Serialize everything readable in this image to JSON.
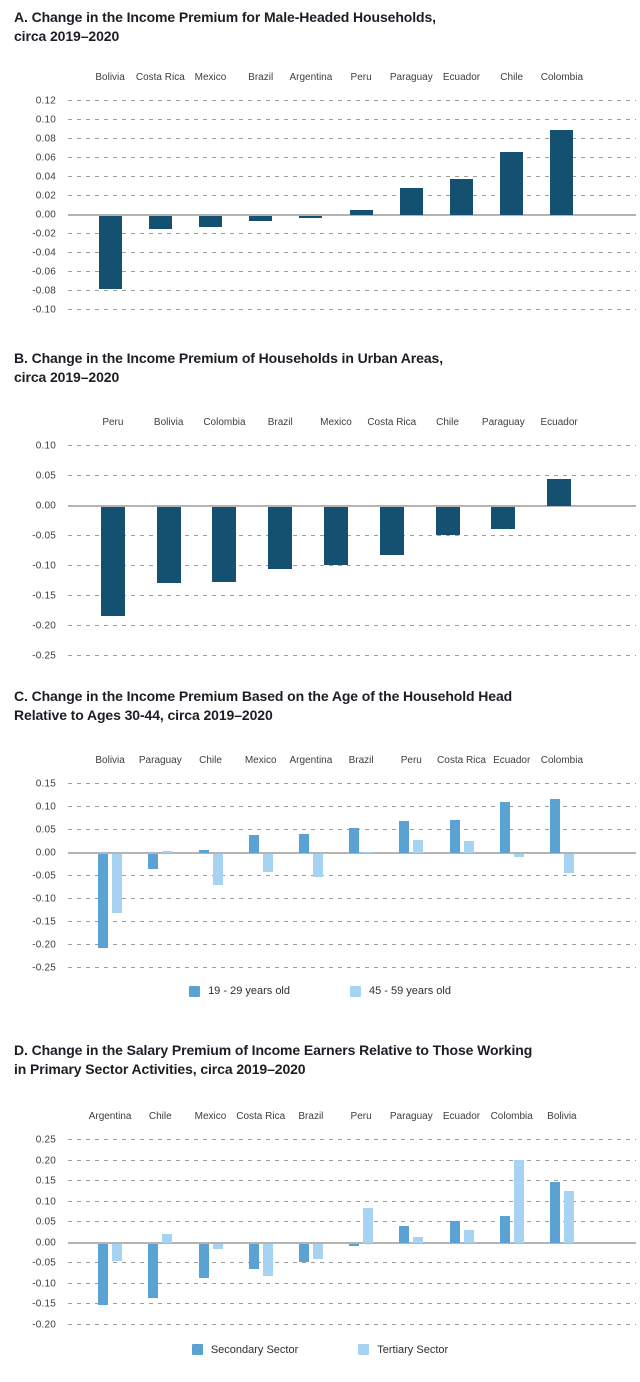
{
  "page": {
    "background": "#ffffff"
  },
  "colors": {
    "dark_teal": "#14506f",
    "medium_blue": "#5aa2d4",
    "light_blue": "#a7d3f2",
    "grid_gray": "#9d9d9d",
    "zero_line_gray": "#b4b4b4",
    "title_text": "#1d1d25",
    "axis_text": "#3e3e3e"
  },
  "chart_data": [
    {
      "panel": "A",
      "type": "bar",
      "title": "A. Change in the Income Premium for Male-Headed Households, circa 2019–2020",
      "title_lines": [
        "A. Change in the Income Premium for Male-Headed Households,",
        "circa 2019–2020"
      ],
      "categories": [
        "Bolivia",
        "Costa Rica",
        "Mexico",
        "Brazil",
        "Argentina",
        "Peru",
        "Paraguay",
        "Ecuador",
        "Chile",
        "Colombia"
      ],
      "series": [
        {
          "name": "",
          "color_key": "dark_teal",
          "values": [
            -0.077,
            -0.014,
            -0.011,
            -0.005,
            -0.002,
            0.005,
            0.029,
            0.038,
            0.066,
            0.09
          ]
        }
      ],
      "yticks": [
        0.12,
        0.1,
        0.08,
        0.06,
        0.04,
        0.02,
        0.0,
        -0.02,
        -0.04,
        -0.06,
        -0.08,
        -0.1
      ],
      "ylim": [
        -0.1,
        0.12
      ],
      "xlabel": "",
      "ylabel": "",
      "grid": "horizontal-dashed",
      "legend_position": "none"
    },
    {
      "panel": "B",
      "type": "bar",
      "title": "B. Change in the Income Premium of Households in Urban Areas, circa 2019–2020",
      "title_lines": [
        "B. Change in the Income Premium of Households in Urban Areas,",
        "circa 2019–2020"
      ],
      "categories": [
        "Peru",
        "Bolivia",
        "Colombia",
        "Brazil",
        "Mexico",
        "Costa Rica",
        "Chile",
        "Paraguay",
        "Ecuador"
      ],
      "series": [
        {
          "name": "",
          "color_key": "dark_teal",
          "values": [
            -0.182,
            -0.126,
            -0.124,
            -0.103,
            -0.097,
            -0.079,
            -0.047,
            -0.037,
            0.046
          ]
        }
      ],
      "yticks": [
        0.1,
        0.05,
        0.0,
        -0.05,
        -0.1,
        -0.15,
        -0.2,
        -0.25
      ],
      "ylim": [
        -0.25,
        0.1
      ],
      "xlabel": "",
      "ylabel": "",
      "grid": "horizontal-dashed",
      "legend_position": "none"
    },
    {
      "panel": "C",
      "type": "grouped_bar",
      "title": "C. Change in the Income Premium Based on the Age of the Household Head Relative to Ages 30-44, circa 2019–2020",
      "title_lines": [
        "C. Change in the Income Premium Based on the Age of the Household Head",
        "Relative to Ages 30-44, circa 2019–2020"
      ],
      "categories": [
        "Bolivia",
        "Paraguay",
        "Chile",
        "Mexico",
        "Argentina",
        "Brazil",
        "Peru",
        "Costa Rica",
        "Ecuador",
        "Colombia"
      ],
      "series": [
        {
          "name": "19 - 29 years old",
          "color_key": "medium_blue",
          "values": [
            -0.203,
            -0.033,
            0.008,
            0.04,
            0.042,
            0.055,
            0.069,
            0.073,
            0.112,
            0.118
          ]
        },
        {
          "name": "45 - 59 years old",
          "color_key": "light_blue",
          "values": [
            -0.127,
            0.004,
            -0.068,
            -0.038,
            -0.049,
            0.003,
            0.028,
            0.026,
            -0.006,
            -0.04
          ]
        }
      ],
      "yticks": [
        0.15,
        0.1,
        0.05,
        0.0,
        -0.05,
        -0.1,
        -0.15,
        -0.2,
        -0.25
      ],
      "ylim": [
        -0.25,
        0.15
      ],
      "xlabel": "",
      "ylabel": "",
      "grid": "horizontal-dashed",
      "legend_position": "bottom"
    },
    {
      "panel": "D",
      "type": "grouped_bar",
      "title": "D. Change in the Salary Premium of Income Earners Relative to Those Working in Primary Sector Activities, circa 2019–2020",
      "title_lines": [
        "D. Change in the Salary Premium of Income Earners Relative to Those Working",
        "in Primary Sector Activities, circa 2019–2020"
      ],
      "categories": [
        "Argentina",
        "Chile",
        "Mexico",
        "Costa Rica",
        "Brazil",
        "Peru",
        "Paraguay",
        "Ecuador",
        "Colombia",
        "Bolivia"
      ],
      "series": [
        {
          "name": "Secondary Sector",
          "color_key": "medium_blue",
          "values": [
            -0.15,
            -0.132,
            -0.084,
            -0.061,
            -0.044,
            -0.006,
            0.042,
            0.052,
            0.065,
            0.147
          ]
        },
        {
          "name": "Tertiary Sector",
          "color_key": "light_blue",
          "values": [
            -0.041,
            0.022,
            -0.012,
            -0.079,
            -0.037,
            0.085,
            0.014,
            0.03,
            0.202,
            0.127
          ]
        }
      ],
      "yticks": [
        0.25,
        0.2,
        0.15,
        0.1,
        0.05,
        0.0,
        -0.05,
        -0.1,
        -0.15,
        -0.2
      ],
      "ylim": [
        -0.2,
        0.25
      ],
      "xlabel": "",
      "ylabel": "",
      "grid": "horizontal-dashed",
      "legend_position": "bottom"
    }
  ]
}
